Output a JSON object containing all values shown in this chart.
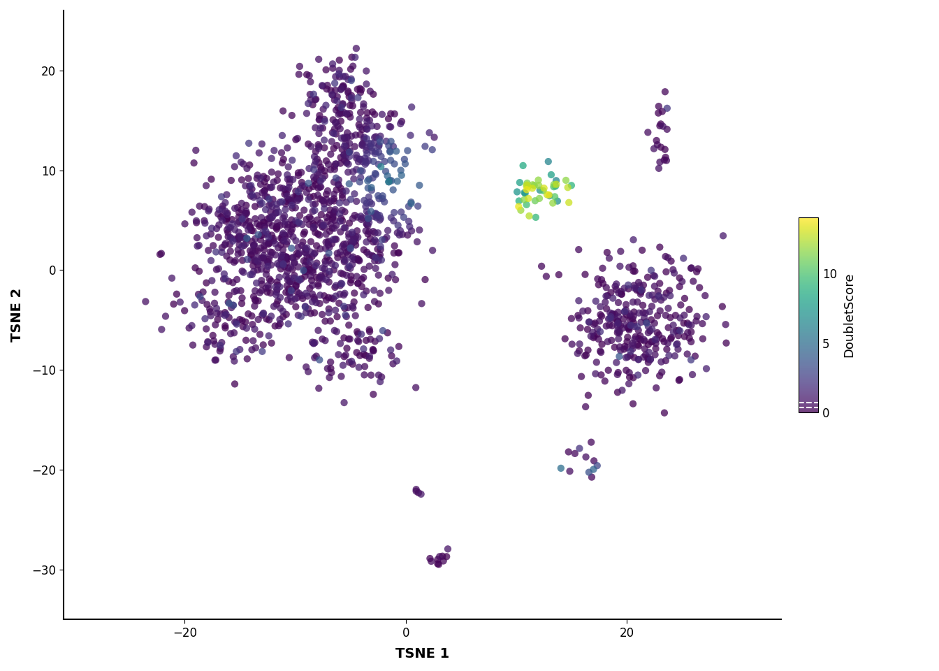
{
  "title": "",
  "xlabel": "TSNE 1",
  "ylabel": "TSNE 2",
  "colorbar_label": "DoubletScore",
  "colorbar_ticks": [
    0,
    5,
    10
  ],
  "cmap": "viridis",
  "vmin": 0,
  "vmax": 14,
  "point_size": 55,
  "alpha": 0.75,
  "xlim": [
    -31,
    34
  ],
  "ylim": [
    -35,
    26
  ],
  "background_color": "#ffffff",
  "axis_color": "#000000",
  "seed": 42
}
